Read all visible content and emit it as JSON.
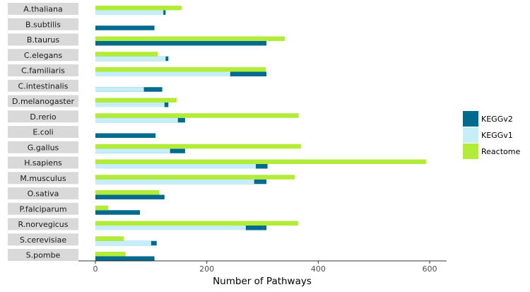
{
  "chart_data": {
    "type": "bar",
    "orientation": "horizontal",
    "xlabel": "Number of Pathways",
    "ylabel": "",
    "xlim": [
      0,
      620
    ],
    "xticks": [
      0,
      200,
      400,
      600
    ],
    "grid": false,
    "legend_position": "right",
    "categories": [
      "A.thaliana",
      "B.subtilis",
      "B.taurus",
      "C.elegans",
      "C.familiaris",
      "C.intestinalis",
      "D.melanogaster",
      "D.rerio",
      "E.coli",
      "G.gallus",
      "H.sapiens",
      "M.musculus",
      "O.sativa",
      "P.falciparum",
      "R.norvegicus",
      "S.cerevisiae",
      "S.pombe"
    ],
    "series": [
      {
        "name": "KEGGv2",
        "color": "#006b8f",
        "values": [
          126,
          106,
          307,
          131,
          307,
          120,
          131,
          161,
          108,
          161,
          309,
          307,
          124,
          80,
          307,
          110,
          106
        ]
      },
      {
        "name": "KEGGv1",
        "color": "#c6eef8",
        "values": [
          122,
          null,
          null,
          126,
          242,
          87,
          124,
          148,
          0,
          134,
          288,
          285,
          null,
          null,
          270,
          100,
          null
        ]
      },
      {
        "name": "Reactome",
        "color": "#b2ec38",
        "values": [
          155,
          null,
          340,
          112,
          306,
          null,
          146,
          365,
          null,
          369,
          594,
          358,
          115,
          23,
          364,
          51,
          54
        ]
      }
    ]
  }
}
